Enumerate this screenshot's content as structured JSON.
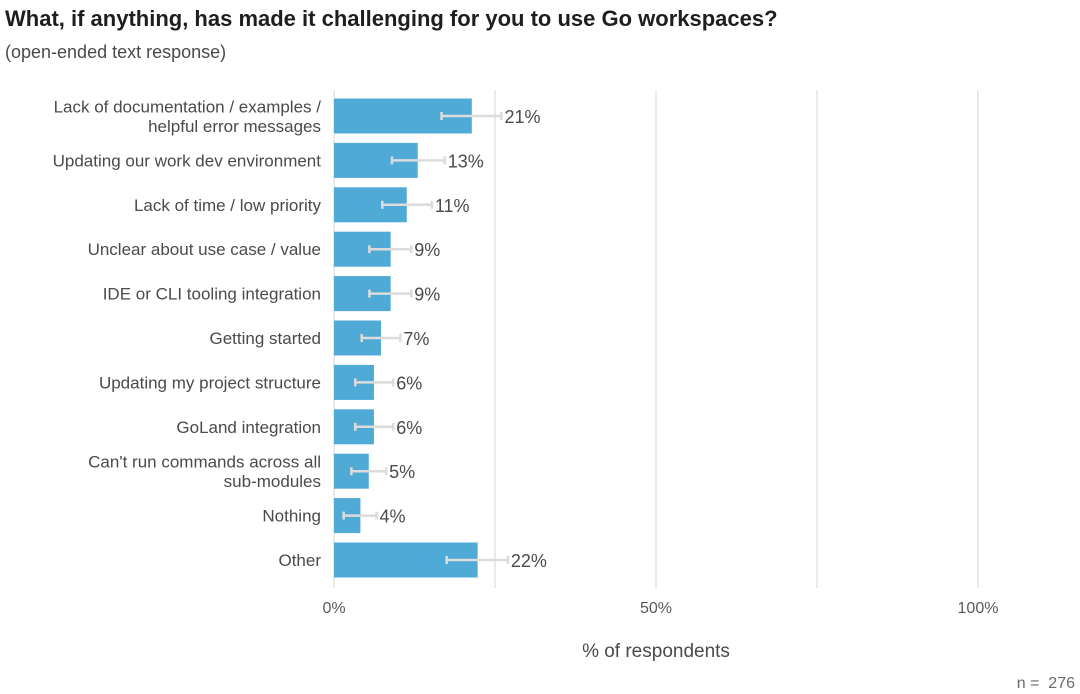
{
  "title": "What, if anything, has made it challenging for you to use Go workspaces?",
  "subtitle": "(open-ended text response)",
  "footnote": "n =  276",
  "chart_data": {
    "type": "bar",
    "orientation": "horizontal",
    "categories": [
      [
        "Lack of documentation / examples /",
        "helpful error messages"
      ],
      [
        "Updating our work dev environment"
      ],
      [
        "Lack of time / low priority"
      ],
      [
        "Unclear about use case / value"
      ],
      [
        "IDE or CLI tooling integration"
      ],
      [
        "Getting started"
      ],
      [
        "Updating my project structure"
      ],
      [
        "GoLand integration"
      ],
      [
        "Can't run commands across all",
        "sub-modules"
      ],
      [
        "Nothing"
      ],
      [
        "Other"
      ]
    ],
    "values": [
      21.4,
      13.0,
      11.3,
      8.8,
      8.8,
      7.3,
      6.2,
      6.2,
      5.4,
      4.1,
      22.3
    ],
    "value_labels": [
      "21%",
      "13%",
      "11%",
      "9%",
      "9%",
      "7%",
      "6%",
      "6%",
      "5%",
      "4%",
      "22%"
    ],
    "error_low": [
      16.7,
      9.0,
      7.5,
      5.5,
      5.5,
      4.3,
      3.3,
      3.3,
      2.7,
      1.5,
      17.5
    ],
    "error_high": [
      26.0,
      17.2,
      15.2,
      12.0,
      12.0,
      10.3,
      9.2,
      9.2,
      8.1,
      6.6,
      27.0
    ],
    "xlabel": "% of respondents",
    "xlim": [
      0,
      100
    ],
    "x_ticks": [
      0,
      25,
      50,
      75,
      100
    ],
    "x_tick_labels": [
      "0%",
      "",
      "50%",
      "",
      "100%"
    ],
    "grid": true,
    "colors": {
      "bar": "#4faad6",
      "error_bar": "#dcdcdc",
      "grid": "#e4e4e4"
    }
  }
}
